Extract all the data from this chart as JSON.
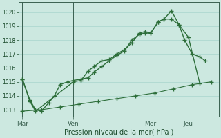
{
  "background_color": "#cce8e0",
  "grid_color": "#a8d4cc",
  "line_color": "#2d6e3a",
  "xlabel": "Pression niveau de la mer( hPa )",
  "ylim": [
    1012.5,
    1020.7
  ],
  "yticks": [
    1013,
    1014,
    1015,
    1016,
    1017,
    1018,
    1019,
    1020
  ],
  "xtick_labels": [
    "Mar",
    "Ven",
    "Mer",
    "Jeu"
  ],
  "xtick_positions": [
    0.0,
    0.27,
    0.68,
    0.88
  ],
  "vline_positions": [
    0.0,
    0.27,
    0.68,
    0.88
  ],
  "line1_x": [
    0.0,
    0.04,
    0.07,
    0.1,
    0.14,
    0.17,
    0.2,
    0.24,
    0.27,
    0.31,
    0.35,
    0.38,
    0.42,
    0.46,
    0.5,
    0.54,
    0.58,
    0.62,
    0.65,
    0.68,
    0.72,
    0.75,
    0.79,
    0.83,
    0.86,
    0.9,
    0.94,
    0.97
  ],
  "line1_y": [
    1015.2,
    1013.7,
    1013.0,
    1012.9,
    1013.5,
    1014.0,
    1014.8,
    1015.0,
    1015.1,
    1015.2,
    1015.3,
    1015.7,
    1016.1,
    1016.5,
    1016.9,
    1017.2,
    1018.0,
    1018.4,
    1018.5,
    1018.5,
    1019.3,
    1019.5,
    1019.5,
    1019.1,
    1018.0,
    1017.0,
    1016.8,
    1016.5
  ],
  "line2_x": [
    0.0,
    0.04,
    0.07,
    0.27,
    0.31,
    0.35,
    0.38,
    0.42,
    0.46,
    0.5,
    0.54,
    0.58,
    0.62,
    0.65,
    0.68,
    0.72,
    0.75,
    0.79,
    0.83,
    0.88,
    0.94
  ],
  "line2_y": [
    1015.2,
    1013.6,
    1012.9,
    1015.0,
    1015.1,
    1015.8,
    1016.1,
    1016.5,
    1016.6,
    1017.0,
    1017.3,
    1017.8,
    1018.5,
    1018.6,
    1018.5,
    1019.3,
    1019.5,
    1020.1,
    1019.1,
    1018.2,
    1014.9
  ],
  "line3_x": [
    0.0,
    0.1,
    0.2,
    0.3,
    0.4,
    0.5,
    0.6,
    0.7,
    0.8,
    0.9,
    1.0
  ],
  "line3_y": [
    1012.9,
    1013.0,
    1013.2,
    1013.4,
    1013.6,
    1013.8,
    1014.0,
    1014.2,
    1014.5,
    1014.8,
    1015.0
  ],
  "markersize": 2.5,
  "linewidth1": 1.0,
  "linewidth2": 1.0,
  "linewidth3": 0.8
}
